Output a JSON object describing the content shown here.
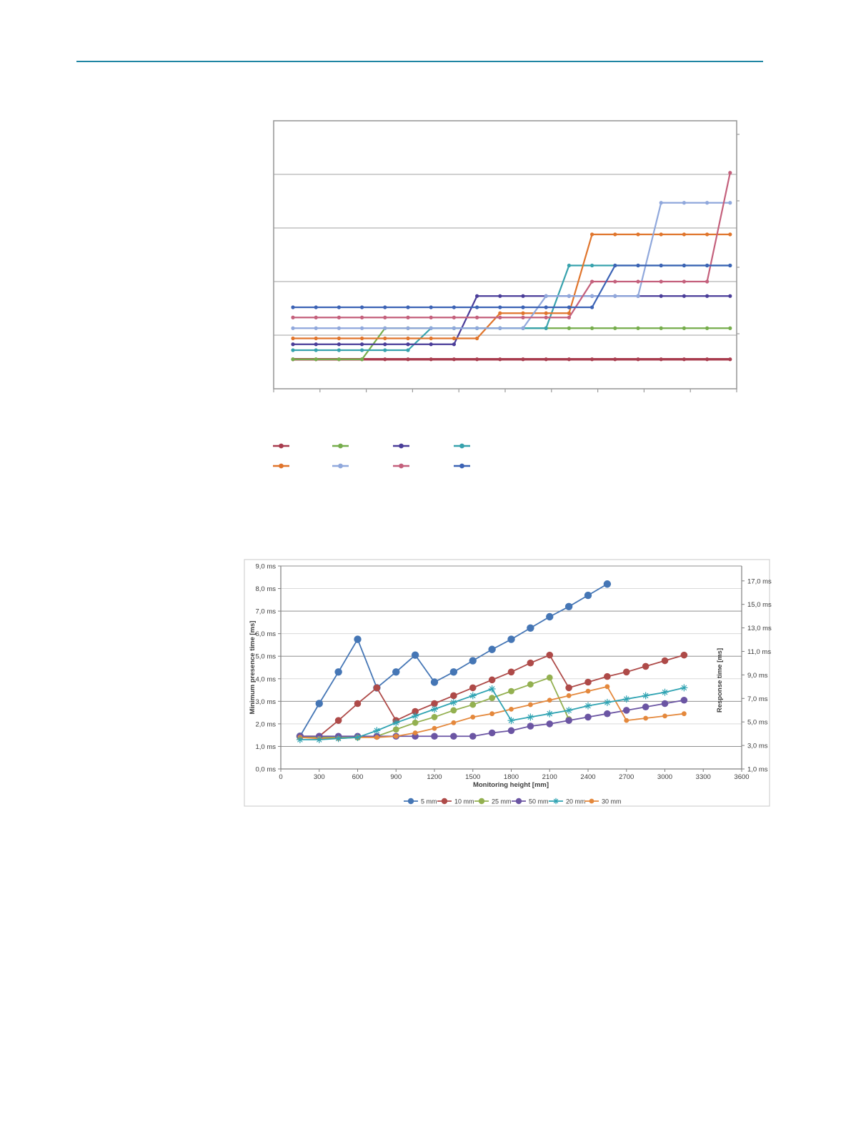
{
  "page": {
    "top_rule_color": "#1f85a3",
    "background": "#ffffff"
  },
  "chart_data": [
    {
      "id": "chart1",
      "type": "line",
      "title": "",
      "xlabel": "",
      "ylabel": "",
      "grid": "horizontal",
      "ylim": [
        0,
        5
      ],
      "gridline_values": [
        1,
        2,
        3,
        4
      ],
      "x_point_count": 20,
      "axis_labels_visible": false,
      "series": [
        {
          "name": "dark-red",
          "color": "#a83c4e",
          "line_width": 3.4,
          "values": [
            0.55,
            0.55,
            0.55,
            0.55,
            0.55,
            0.55,
            0.55,
            0.55,
            0.55,
            0.55,
            0.55,
            0.55,
            0.55,
            0.55,
            0.55,
            0.55,
            0.55,
            0.55,
            0.55,
            0.55
          ]
        },
        {
          "name": "green",
          "color": "#76ad4c",
          "line_width": 2.2,
          "values": [
            0.55,
            0.55,
            0.55,
            0.55,
            1.13,
            1.13,
            1.13,
            1.13,
            1.13,
            1.13,
            1.13,
            1.13,
            1.13,
            1.13,
            1.13,
            1.13,
            1.13,
            1.13,
            1.13,
            1.13
          ]
        },
        {
          "name": "teal",
          "color": "#37a2ad",
          "line_width": 2.2,
          "values": [
            0.72,
            0.72,
            0.72,
            0.72,
            0.72,
            0.72,
            1.13,
            1.13,
            1.13,
            1.13,
            1.13,
            1.13,
            2.3,
            2.3,
            2.3,
            2.3,
            2.3,
            2.3,
            2.3,
            2.3
          ]
        },
        {
          "name": "indigo",
          "color": "#4a3d99",
          "line_width": 2.2,
          "values": [
            0.83,
            0.83,
            0.83,
            0.83,
            0.83,
            0.83,
            0.83,
            0.83,
            1.73,
            1.73,
            1.73,
            1.73,
            1.73,
            1.73,
            1.73,
            1.73,
            1.73,
            1.73,
            1.73,
            1.73
          ]
        },
        {
          "name": "orange",
          "color": "#e0752c",
          "line_width": 2.2,
          "values": [
            0.94,
            0.94,
            0.94,
            0.94,
            0.94,
            0.94,
            0.94,
            0.94,
            0.94,
            1.41,
            1.41,
            1.41,
            1.41,
            2.88,
            2.88,
            2.88,
            2.88,
            2.88,
            2.88,
            2.88
          ]
        },
        {
          "name": "light-blue",
          "color": "#90a8dc",
          "line_width": 2.2,
          "values": [
            1.13,
            1.13,
            1.13,
            1.13,
            1.13,
            1.13,
            1.13,
            1.13,
            1.13,
            1.13,
            1.13,
            1.73,
            1.73,
            1.73,
            1.73,
            1.73,
            3.47,
            3.47,
            3.47,
            3.47
          ]
        },
        {
          "name": "rose",
          "color": "#c4607c",
          "line_width": 2.2,
          "values": [
            1.33,
            1.33,
            1.33,
            1.33,
            1.33,
            1.33,
            1.33,
            1.33,
            1.33,
            1.33,
            1.33,
            1.33,
            1.33,
            2.0,
            2.0,
            2.0,
            2.0,
            2.0,
            2.0,
            4.03
          ]
        },
        {
          "name": "steel-blue",
          "color": "#3c63b5",
          "line_width": 2.2,
          "values": [
            1.52,
            1.52,
            1.52,
            1.52,
            1.52,
            1.52,
            1.52,
            1.52,
            1.52,
            1.52,
            1.52,
            1.52,
            1.52,
            1.52,
            2.3,
            2.3,
            2.3,
            2.3,
            2.3,
            2.3
          ]
        }
      ],
      "legend": {
        "labels_visible": false,
        "rows": [
          [
            "dark-red",
            "green",
            "indigo",
            "teal"
          ],
          [
            "orange",
            "light-blue",
            "rose",
            "steel-blue"
          ]
        ]
      }
    },
    {
      "id": "chart2",
      "type": "line",
      "title": "",
      "xlabel": "Monitoring height [mm]",
      "ylabel_left": "Minimum presence time [ms]",
      "ylabel_right": "Response time [ms]",
      "xlim": [
        0,
        3600
      ],
      "ylim_left": [
        0,
        9
      ],
      "left_tick_labels": [
        "9,0 ms",
        "8,0 ms",
        "7,0 ms",
        "6,0 ms",
        "5,0 ms",
        "4,0 ms",
        "3,0 ms",
        "2,0 ms",
        "1,0 ms",
        "0,0 ms"
      ],
      "right_tick_labels": [
        "17,0 ms",
        "15,0 ms",
        "13,0 ms",
        "11,0 ms",
        "9,0 ms",
        "7,0 ms",
        "5,0 ms",
        "3,0 ms",
        "1,0 ms"
      ],
      "x_tick_labels": [
        "0",
        "300",
        "600",
        "900",
        "1200",
        "1500",
        "1800",
        "2100",
        "2400",
        "2700",
        "3000",
        "3300",
        "3600"
      ],
      "series": [
        {
          "name": "5 mm",
          "color": "#4576b5",
          "marker": "circle",
          "marker_r": 5.2,
          "points": [
            [
              150,
              1.45
            ],
            [
              300,
              2.9
            ],
            [
              450,
              4.3
            ],
            [
              600,
              5.75
            ],
            [
              750,
              3.6
            ],
            [
              900,
              4.3
            ],
            [
              1050,
              5.05
            ],
            [
              1200,
              3.85
            ],
            [
              1350,
              4.3
            ],
            [
              1500,
              4.8
            ],
            [
              1650,
              5.3
            ],
            [
              1800,
              5.75
            ],
            [
              1950,
              6.25
            ],
            [
              2100,
              6.75
            ],
            [
              2250,
              7.2
            ],
            [
              2400,
              7.7
            ],
            [
              2550,
              8.2
            ]
          ]
        },
        {
          "name": "10 mm",
          "color": "#ae4a48",
          "marker": "circle",
          "marker_r": 4.8,
          "points": [
            [
              150,
              1.45
            ],
            [
              300,
              1.45
            ],
            [
              450,
              2.15
            ],
            [
              600,
              2.9
            ],
            [
              750,
              3.6
            ],
            [
              900,
              2.15
            ],
            [
              1050,
              2.55
            ],
            [
              1200,
              2.9
            ],
            [
              1350,
              3.25
            ],
            [
              1500,
              3.6
            ],
            [
              1650,
              3.95
            ],
            [
              1800,
              4.3
            ],
            [
              1950,
              4.7
            ],
            [
              2100,
              5.05
            ],
            [
              2250,
              3.6
            ],
            [
              2400,
              3.85
            ],
            [
              2550,
              4.1
            ],
            [
              2700,
              4.3
            ],
            [
              2850,
              4.55
            ],
            [
              3000,
              4.8
            ],
            [
              3150,
              5.05
            ]
          ]
        },
        {
          "name": "25 mm",
          "color": "#93b050",
          "marker": "circle",
          "marker_r": 4.4,
          "points": [
            [
              150,
              1.4
            ],
            [
              300,
              1.4
            ],
            [
              450,
              1.4
            ],
            [
              600,
              1.4
            ],
            [
              750,
              1.45
            ],
            [
              900,
              1.75
            ],
            [
              1050,
              2.05
            ],
            [
              1200,
              2.3
            ],
            [
              1350,
              2.6
            ],
            [
              1500,
              2.85
            ],
            [
              1650,
              3.15
            ],
            [
              1800,
              3.45
            ],
            [
              1950,
              3.75
            ],
            [
              2100,
              4.05
            ],
            [
              2250,
              2.2
            ]
          ]
        },
        {
          "name": "50 mm",
          "color": "#6b55a3",
          "marker": "circle",
          "marker_r": 4.8,
          "points": [
            [
              150,
              1.45
            ],
            [
              300,
              1.45
            ],
            [
              450,
              1.45
            ],
            [
              600,
              1.45
            ],
            [
              750,
              1.45
            ],
            [
              900,
              1.45
            ],
            [
              1050,
              1.45
            ],
            [
              1200,
              1.45
            ],
            [
              1350,
              1.45
            ],
            [
              1500,
              1.45
            ],
            [
              1650,
              1.6
            ],
            [
              1800,
              1.7
            ],
            [
              1950,
              1.9
            ],
            [
              2100,
              2.0
            ],
            [
              2250,
              2.15
            ],
            [
              2400,
              2.3
            ],
            [
              2550,
              2.45
            ],
            [
              2700,
              2.6
            ],
            [
              2850,
              2.75
            ],
            [
              3000,
              2.9
            ],
            [
              3150,
              3.05
            ]
          ]
        },
        {
          "name": "30 mm",
          "color": "#e4883c",
          "marker": "circle",
          "marker_r": 3.4,
          "points": [
            [
              150,
              1.4
            ],
            [
              300,
              1.35
            ],
            [
              450,
              1.35
            ],
            [
              600,
              1.4
            ],
            [
              750,
              1.4
            ],
            [
              900,
              1.45
            ],
            [
              1050,
              1.6
            ],
            [
              1200,
              1.8
            ],
            [
              1350,
              2.05
            ],
            [
              1500,
              2.3
            ],
            [
              1650,
              2.45
            ],
            [
              1800,
              2.65
            ],
            [
              1950,
              2.85
            ],
            [
              2100,
              3.05
            ],
            [
              2250,
              3.25
            ],
            [
              2400,
              3.45
            ],
            [
              2550,
              3.65
            ],
            [
              2700,
              2.15
            ],
            [
              2850,
              2.25
            ],
            [
              3000,
              2.35
            ],
            [
              3150,
              2.45
            ]
          ]
        },
        {
          "name": "20 mm",
          "color": "#2fa3b2",
          "marker": "star",
          "marker_r": 5,
          "points": [
            [
              150,
              1.3
            ],
            [
              300,
              1.3
            ],
            [
              450,
              1.35
            ],
            [
              600,
              1.4
            ],
            [
              750,
              1.7
            ],
            [
              900,
              2.05
            ],
            [
              1050,
              2.35
            ],
            [
              1200,
              2.65
            ],
            [
              1350,
              2.95
            ],
            [
              1500,
              3.25
            ],
            [
              1650,
              3.55
            ],
            [
              1800,
              2.15
            ],
            [
              1950,
              2.3
            ],
            [
              2100,
              2.45
            ],
            [
              2250,
              2.6
            ],
            [
              2400,
              2.8
            ],
            [
              2550,
              2.95
            ],
            [
              2700,
              3.1
            ],
            [
              2850,
              3.25
            ],
            [
              3000,
              3.4
            ],
            [
              3150,
              3.6
            ]
          ]
        }
      ],
      "legend_order": [
        "5 mm",
        "10 mm",
        "25 mm",
        "50 mm",
        "20 mm",
        "30 mm"
      ],
      "legend_position": "bottom"
    }
  ]
}
